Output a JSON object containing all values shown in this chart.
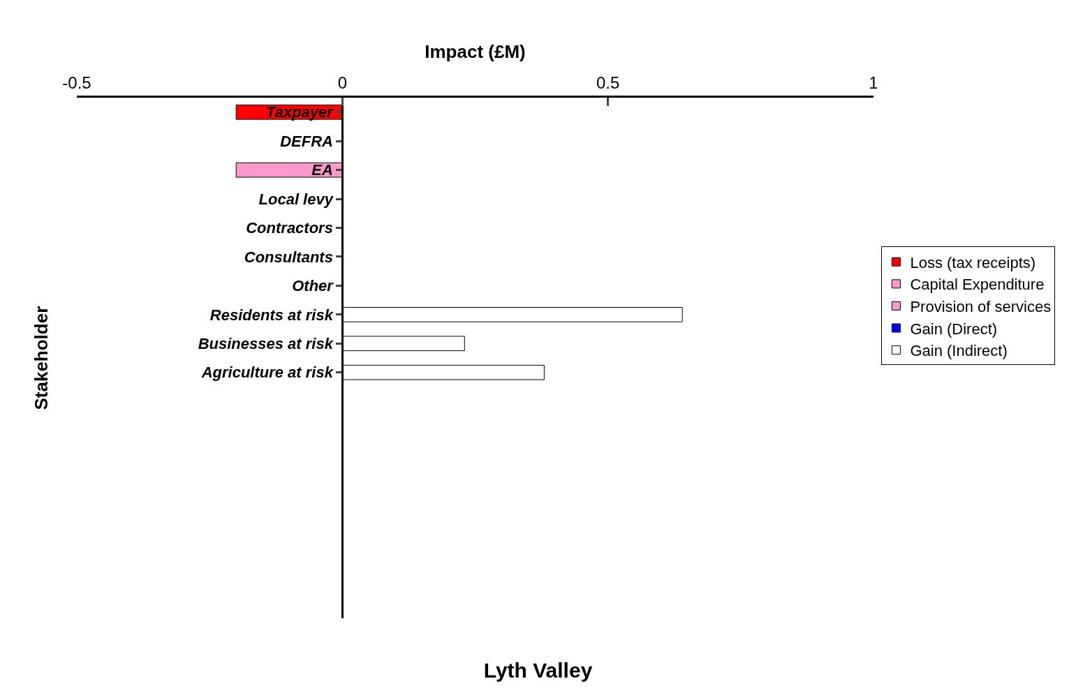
{
  "chart_data": {
    "type": "bar",
    "orientation": "horizontal",
    "title": "Lyth Valley",
    "xlabel": "Impact (£M)",
    "ylabel": "Stakeholder",
    "categories": [
      "Taxpayer",
      "DEFRA",
      "EA",
      "Local levy",
      "Contractors",
      "Consultants",
      "Other",
      "Residents at risk",
      "Businesses at risk",
      "Agriculture at risk",
      null,
      null,
      null,
      null,
      null,
      null,
      null,
      null
    ],
    "series": [
      {
        "name": "Loss (tax receipts)",
        "color": "#ff0000",
        "values": [
          -0.2,
          null,
          null,
          null,
          null,
          null,
          null,
          null,
          null,
          null,
          null,
          null,
          null,
          null,
          null,
          null,
          null,
          null
        ]
      },
      {
        "name": "Capital Expenditure",
        "color": "#ff99cc",
        "values": [
          null,
          null,
          -0.2,
          null,
          null,
          null,
          null,
          null,
          null,
          null,
          null,
          null,
          null,
          null,
          null,
          null,
          null,
          null
        ]
      },
      {
        "name": "Provision of services",
        "color": "#ff99cc",
        "values": [
          null,
          null,
          null,
          null,
          null,
          null,
          null,
          null,
          null,
          null,
          null,
          null,
          null,
          null,
          null,
          null,
          null,
          null
        ]
      },
      {
        "name": "Gain (Direct)",
        "color": "#0000ff",
        "values": [
          null,
          null,
          null,
          null,
          null,
          null,
          null,
          null,
          null,
          null,
          null,
          null,
          null,
          null,
          null,
          null,
          null,
          null
        ]
      },
      {
        "name": "Gain (Indirect)",
        "color": "#ffffff",
        "values": [
          null,
          null,
          null,
          null,
          null,
          null,
          null,
          0.64,
          0.23,
          0.38,
          null,
          null,
          null,
          null,
          null,
          null,
          null,
          null
        ]
      }
    ],
    "xlim": [
      -0.5,
      1
    ],
    "xticks": [
      -0.5,
      0,
      0.5,
      1
    ],
    "legend": "right"
  }
}
